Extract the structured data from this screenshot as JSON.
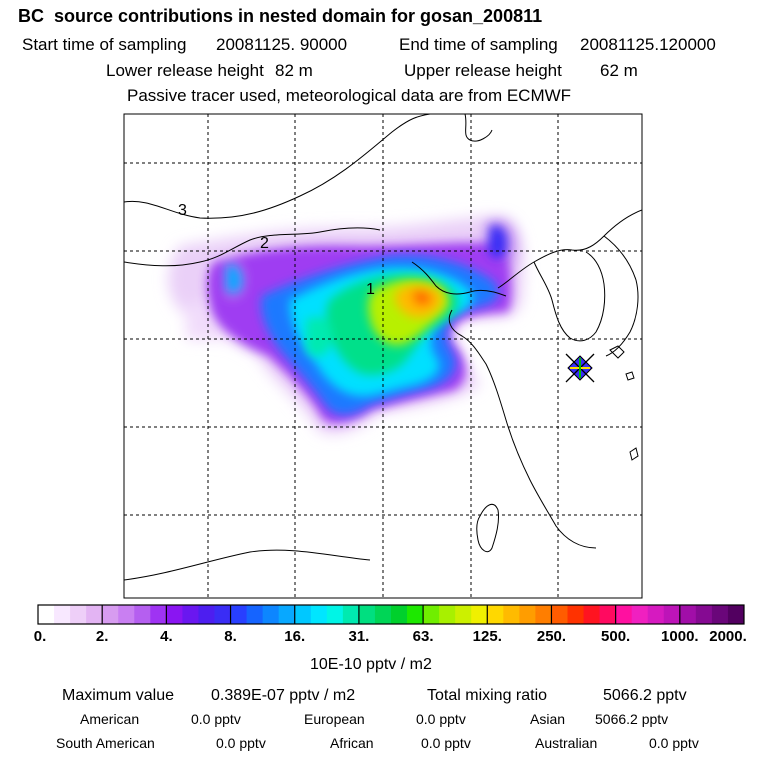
{
  "header": {
    "title": "BC  source contributions in nested domain for gosan_200811",
    "start_label": "Start time of sampling",
    "start_value": "20081125. 90000",
    "end_label": "End time of sampling",
    "end_value": "20081125.120000",
    "lower_label": "Lower release height",
    "lower_value": "82 m",
    "upper_label": "Upper release height",
    "upper_value": "62 m",
    "note": "Passive tracer used, meteorological data are from ECMWF"
  },
  "map": {
    "region_labels": [
      "1",
      "2",
      "3"
    ],
    "receptor": "gosan",
    "colors": {
      "coast": "#000000",
      "grid": "#000000"
    }
  },
  "colorbar": {
    "tick_labels": [
      "0.",
      "2.",
      "4.",
      "8.",
      "16.",
      "31.",
      "63.",
      "125.",
      "250.",
      "500.",
      "1000.",
      "2000."
    ],
    "colors": [
      "#ffffff",
      "#f8e8ff",
      "#eecff8",
      "#e3b4f3",
      "#d79cf0",
      "#c97ff2",
      "#b55ff0",
      "#9f33f3",
      "#8a15f2",
      "#6a17f0",
      "#4d1ef0",
      "#3a2df5",
      "#283fff",
      "#1564ff",
      "#0d86ff",
      "#08a8ff",
      "#00c8ff",
      "#00e6ff",
      "#00f5e6",
      "#00eab0",
      "#00df80",
      "#00d556",
      "#00d02c",
      "#1de800",
      "#70ee00",
      "#a8f000",
      "#ccf000",
      "#f0f000",
      "#ffd800",
      "#ffbb00",
      "#ff9d00",
      "#ff7e00",
      "#ff5c00",
      "#ff3200",
      "#ff1420",
      "#ff0a60",
      "#ff10a0",
      "#f020c0",
      "#d61ac0",
      "#bd14b8",
      "#a10ea8",
      "#850a92",
      "#6a067a",
      "#520060"
    ],
    "unit": "10E-10 pptv / m2"
  },
  "stats": {
    "max_label": "Maximum value",
    "max_value": "0.389E-07 pptv / m2",
    "total_label": "Total mixing ratio",
    "total_value": "5066.2 pptv",
    "sources": [
      {
        "name": "American",
        "value": "0.0 pptv"
      },
      {
        "name": "European",
        "value": "0.0 pptv"
      },
      {
        "name": "Asian",
        "value": "5066.2 pptv"
      },
      {
        "name": "South American",
        "value": "0.0 pptv"
      },
      {
        "name": "African",
        "value": "0.0 pptv"
      },
      {
        "name": "Australian",
        "value": "0.0 pptv"
      }
    ]
  }
}
